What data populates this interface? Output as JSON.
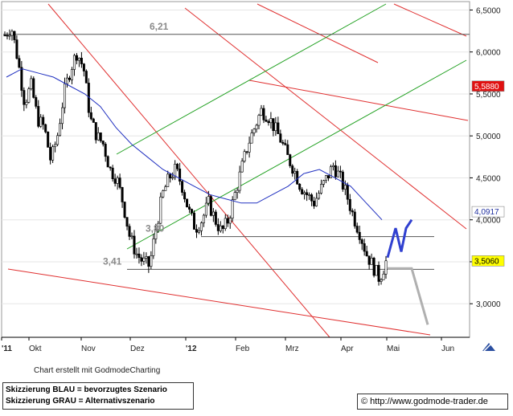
{
  "chart_data": {
    "type": "candlestick",
    "ylim": [
      2.6,
      6.6
    ],
    "x_ticks": [
      "'11",
      "Okt",
      "Nov",
      "Dez",
      "'12",
      "Feb",
      "Mrz",
      "Apr",
      "Mai",
      "Jun"
    ],
    "y_ticks": [
      "6,5000",
      "6,0000",
      "5,5000",
      "5,0000",
      "4,5000",
      "4,0000",
      "3,5000",
      "3,0000"
    ],
    "y_tick_values": [
      6.5,
      6.0,
      5.5,
      5.0,
      4.5,
      4.0,
      3.5,
      3.0
    ],
    "price_path": [
      6.2,
      6.3,
      5.9,
      5.4,
      5.6,
      5.2,
      5.1,
      4.7,
      5.0,
      5.5,
      5.8,
      6.0,
      5.8,
      5.2,
      5.0,
      4.9,
      4.6,
      4.5,
      4.2,
      3.8,
      3.6,
      3.5,
      3.45,
      3.9,
      4.3,
      4.5,
      4.6,
      4.4,
      4.1,
      3.9,
      4.0,
      4.2,
      4.0,
      3.85,
      4.0,
      4.3,
      4.6,
      4.9,
      5.1,
      5.3,
      5.25,
      5.1,
      4.95,
      4.75,
      4.6,
      4.4,
      4.3,
      4.2,
      4.35,
      4.5,
      4.65,
      4.5,
      4.3,
      4.05,
      3.85,
      3.6,
      3.45,
      3.3,
      3.5
    ],
    "moving_average": [
      5.7,
      5.8,
      5.75,
      5.7,
      5.6,
      5.5,
      5.35,
      5.1,
      4.9,
      4.75,
      4.6,
      4.5,
      4.4,
      4.3,
      4.25,
      4.2,
      4.2,
      4.3,
      4.4,
      4.55,
      4.6,
      4.5,
      4.4,
      4.2,
      4.0
    ],
    "levels": [
      {
        "value": 6.21,
        "label": "6,21",
        "color": "#808080"
      },
      {
        "value": 3.8,
        "label": "3,80",
        "color": "#808080"
      },
      {
        "value": 3.41,
        "label": "3,41",
        "color": "#808080"
      }
    ],
    "price_badges": [
      {
        "value": 5.588,
        "label": "5,5880",
        "bg": "#e01010",
        "fg": "#ffffff"
      },
      {
        "value": 4.0917,
        "label": "4,0917",
        "bg": "#ffffff",
        "fg": "#2030a0"
      },
      {
        "value": 3.506,
        "label": "3,5060",
        "bg": "#ffff00",
        "fg": "#000000"
      }
    ],
    "scenario_blue": [
      3.55,
      3.9,
      3.62,
      3.9,
      4.0
    ],
    "scenario_gray": [
      3.42,
      3.42,
      2.75
    ],
    "colors": {
      "candle": "#000000",
      "moving_average": "#2030c0",
      "trend_red": "#e03030",
      "channel_green": "#20a020",
      "scenario_blue": "#3040d0",
      "scenario_gray": "#b0b0b0"
    }
  },
  "footer": {
    "credit": "Chart erstellt mit GodmodeCharting",
    "legend_blue": "Skizzierung BLAU = bevorzugtes Szenario",
    "legend_gray": "Skizzierung GRAU = Alternativszenario",
    "website_symbol": "©",
    "website": "http://www.godmode-trader.de"
  },
  "icons": {
    "pen": "pen-icon"
  }
}
